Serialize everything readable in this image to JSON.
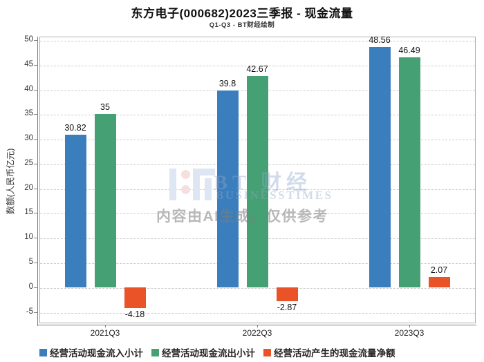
{
  "header": {
    "title": "东方电子(000682)2023三季报 - 现金流量",
    "subtitle": "Q1-Q3 - BT财经绘制"
  },
  "watermark": {
    "brand_cn": "BT 财经",
    "brand_en": "BUSINESSTIMES",
    "disclaimer": "内容由AI生成，仅供参考",
    "logo_blue": "#dde6f2",
    "logo_pink": "#f6dfdf"
  },
  "colors": {
    "inflow_blue": "#3a7ebd",
    "outflow_green": "#45a173",
    "net_orange": "#ea5327",
    "grid": "#cccccc",
    "axis": "#7d7d7d"
  },
  "chart_data": {
    "type": "bar",
    "title": "东方电子(000682)2023三季报 - 现金流量",
    "subtitle": "Q1-Q3 - BT财经绘制",
    "categories": [
      "2021Q3",
      "2022Q3",
      "2023Q3"
    ],
    "series": [
      {
        "name": "经营活动现金流入小计",
        "color": "#3a7ebd",
        "values": [
          30.82,
          39.8,
          48.56
        ]
      },
      {
        "name": "经营活动现金流出小计",
        "color": "#45a173",
        "values": [
          35,
          42.67,
          46.49
        ]
      },
      {
        "name": "经营活动产生的现金流量净额",
        "color": "#ea5327",
        "values": [
          -4.18,
          -2.87,
          2.07
        ]
      }
    ],
    "xlabel": "",
    "ylabel": "数额(人民币亿元)",
    "ylim": [
      -7.3,
      50.7
    ],
    "yticks": [
      -5,
      0,
      5,
      10,
      15,
      20,
      25,
      30,
      35,
      40,
      45,
      50
    ],
    "grid": true,
    "grid_style": "dashed",
    "legend_position": "bottom-left",
    "bar_value_labels": true
  }
}
